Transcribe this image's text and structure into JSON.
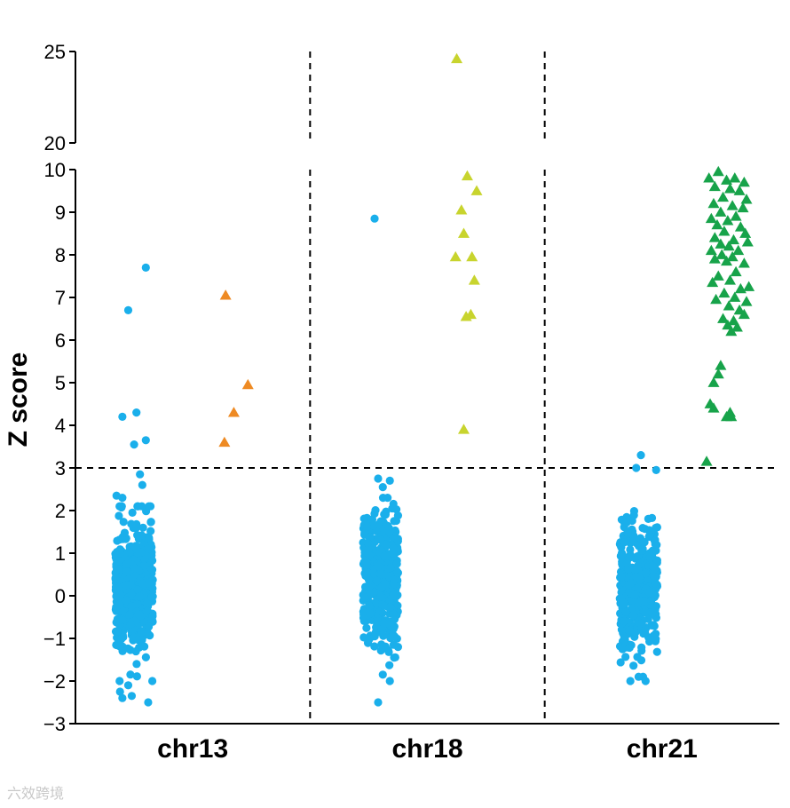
{
  "chart_data": {
    "type": "scatter",
    "title": "",
    "ylabel": "Z score",
    "xlabel": "",
    "categories": [
      "chr13",
      "chr18",
      "chr21"
    ],
    "axis_break": [
      10,
      20
    ],
    "ylim_lower": [
      -3,
      10
    ],
    "ylim_upper": [
      20,
      25
    ],
    "yticks_lower": [
      -3,
      -2,
      -1,
      0,
      1,
      2,
      3,
      4,
      5,
      6,
      7,
      8,
      9,
      10
    ],
    "yticks_upper": [
      20,
      25
    ],
    "threshold": 3,
    "grid": false,
    "legend": "none",
    "colors": {
      "control": "#1aafeb",
      "chr13": "#ee8a23",
      "chr18": "#c8d42e",
      "chr21": "#17a34a"
    },
    "series": [
      {
        "category": "chr13",
        "marker": "circle",
        "color_key": "control",
        "outliers": [
          {
            "dx": -0.4,
            "y": 7.7
          },
          {
            "dx": -0.55,
            "y": 6.7
          },
          {
            "dx": -0.6,
            "y": 4.2
          },
          {
            "dx": -0.48,
            "y": 4.3
          },
          {
            "dx": -0.4,
            "y": 3.65
          },
          {
            "dx": -0.5,
            "y": 3.55
          },
          {
            "dx": -0.45,
            "y": 2.85
          },
          {
            "dx": -0.43,
            "y": 2.6
          },
          {
            "dx": -0.65,
            "y": 2.35
          },
          {
            "dx": -0.6,
            "y": 2.3
          },
          {
            "dx": -0.55,
            "y": -2.1
          },
          {
            "dx": -0.62,
            "y": -2.25
          },
          {
            "dx": -0.6,
            "y": -2.4
          },
          {
            "dx": -0.38,
            "y": -2.5
          },
          {
            "dx": -0.52,
            "y": -2.35
          }
        ],
        "bulk": {
          "n": 460,
          "mean": 0.3,
          "sd": 0.75,
          "min": -2.0,
          "max": 2.1,
          "center": -0.5,
          "spread": 0.16
        }
      },
      {
        "category": "chr13",
        "marker": "triangle",
        "color_key": "chr13",
        "points": [
          {
            "dx": 0.28,
            "y": 7.05
          },
          {
            "dx": 0.47,
            "y": 4.95
          },
          {
            "dx": 0.35,
            "y": 4.3
          },
          {
            "dx": 0.27,
            "y": 3.6
          }
        ]
      },
      {
        "category": "chr18",
        "marker": "circle",
        "color_key": "control",
        "outliers": [
          {
            "dx": -0.45,
            "y": 8.85
          },
          {
            "dx": -0.42,
            "y": 2.75
          },
          {
            "dx": -0.32,
            "y": 2.7
          },
          {
            "dx": -0.38,
            "y": 2.55
          },
          {
            "dx": -0.42,
            "y": -2.5
          },
          {
            "dx": -0.32,
            "y": -2.0
          },
          {
            "dx": -0.38,
            "y": -1.85
          }
        ],
        "bulk": {
          "n": 420,
          "mean": 0.4,
          "sd": 0.8,
          "min": -1.8,
          "max": 2.3,
          "center": -0.4,
          "spread": 0.15
        }
      },
      {
        "category": "chr18",
        "marker": "triangle",
        "color_key": "chr18",
        "points": [
          {
            "dx": 0.25,
            "y": 24.6
          },
          {
            "dx": 0.34,
            "y": 9.85
          },
          {
            "dx": 0.42,
            "y": 9.5
          },
          {
            "dx": 0.29,
            "y": 9.05
          },
          {
            "dx": 0.31,
            "y": 8.5
          },
          {
            "dx": 0.38,
            "y": 7.95
          },
          {
            "dx": 0.24,
            "y": 7.95
          },
          {
            "dx": 0.4,
            "y": 7.4
          },
          {
            "dx": 0.37,
            "y": 6.6
          },
          {
            "dx": 0.33,
            "y": 6.55
          },
          {
            "dx": 0.31,
            "y": 3.9
          }
        ]
      },
      {
        "category": "chr21",
        "marker": "circle",
        "color_key": "control",
        "outliers": [
          {
            "dx": -0.18,
            "y": 3.3
          },
          {
            "dx": -0.05,
            "y": 2.95
          },
          {
            "dx": -0.22,
            "y": 3.0
          },
          {
            "dx": -0.14,
            "y": -2.0
          },
          {
            "dx": -0.27,
            "y": -2.0
          },
          {
            "dx": -0.2,
            "y": -1.9
          }
        ],
        "bulk": {
          "n": 380,
          "mean": 0.2,
          "sd": 0.75,
          "min": -1.9,
          "max": 2.3,
          "center": -0.2,
          "spread": 0.16
        }
      },
      {
        "category": "chr21",
        "marker": "triangle",
        "color_key": "chr21",
        "points": [
          {
            "dx": 0.48,
            "y": 9.95
          },
          {
            "dx": 0.4,
            "y": 9.8
          },
          {
            "dx": 0.55,
            "y": 9.75
          },
          {
            "dx": 0.62,
            "y": 9.8
          },
          {
            "dx": 0.7,
            "y": 9.7
          },
          {
            "dx": 0.45,
            "y": 9.6
          },
          {
            "dx": 0.58,
            "y": 9.55
          },
          {
            "dx": 0.66,
            "y": 9.5
          },
          {
            "dx": 0.52,
            "y": 9.35
          },
          {
            "dx": 0.72,
            "y": 9.3
          },
          {
            "dx": 0.44,
            "y": 9.2
          },
          {
            "dx": 0.6,
            "y": 9.15
          },
          {
            "dx": 0.69,
            "y": 9.1
          },
          {
            "dx": 0.5,
            "y": 9.0
          },
          {
            "dx": 0.63,
            "y": 8.9
          },
          {
            "dx": 0.42,
            "y": 8.85
          },
          {
            "dx": 0.56,
            "y": 8.8
          },
          {
            "dx": 0.47,
            "y": 8.7
          },
          {
            "dx": 0.67,
            "y": 8.65
          },
          {
            "dx": 0.53,
            "y": 8.55
          },
          {
            "dx": 0.71,
            "y": 8.5
          },
          {
            "dx": 0.45,
            "y": 8.4
          },
          {
            "dx": 0.61,
            "y": 8.35
          },
          {
            "dx": 0.5,
            "y": 8.25
          },
          {
            "dx": 0.73,
            "y": 8.3
          },
          {
            "dx": 0.57,
            "y": 8.2
          },
          {
            "dx": 0.42,
            "y": 8.1
          },
          {
            "dx": 0.65,
            "y": 8.1
          },
          {
            "dx": 0.51,
            "y": 8.0
          },
          {
            "dx": 0.6,
            "y": 7.95
          },
          {
            "dx": 0.45,
            "y": 7.9
          },
          {
            "dx": 0.55,
            "y": 7.85
          },
          {
            "dx": 0.7,
            "y": 7.8
          },
          {
            "dx": 0.63,
            "y": 7.6
          },
          {
            "dx": 0.48,
            "y": 7.5
          },
          {
            "dx": 0.58,
            "y": 7.4
          },
          {
            "dx": 0.43,
            "y": 7.35
          },
          {
            "dx": 0.67,
            "y": 7.2
          },
          {
            "dx": 0.74,
            "y": 7.25
          },
          {
            "dx": 0.53,
            "y": 7.1
          },
          {
            "dx": 0.62,
            "y": 7.0
          },
          {
            "dx": 0.72,
            "y": 6.9
          },
          {
            "dx": 0.46,
            "y": 6.95
          },
          {
            "dx": 0.57,
            "y": 6.8
          },
          {
            "dx": 0.66,
            "y": 6.7
          },
          {
            "dx": 0.7,
            "y": 6.6
          },
          {
            "dx": 0.52,
            "y": 6.5
          },
          {
            "dx": 0.61,
            "y": 6.45
          },
          {
            "dx": 0.56,
            "y": 6.35
          },
          {
            "dx": 0.64,
            "y": 6.3
          },
          {
            "dx": 0.59,
            "y": 6.2
          },
          {
            "dx": 0.5,
            "y": 5.4
          },
          {
            "dx": 0.48,
            "y": 5.2
          },
          {
            "dx": 0.44,
            "y": 5.0
          },
          {
            "dx": 0.41,
            "y": 4.5
          },
          {
            "dx": 0.44,
            "y": 4.4
          },
          {
            "dx": 0.58,
            "y": 4.3
          },
          {
            "dx": 0.55,
            "y": 4.2
          },
          {
            "dx": 0.59,
            "y": 4.2
          },
          {
            "dx": 0.38,
            "y": 3.15
          }
        ]
      }
    ]
  },
  "watermark": "六效跨境"
}
